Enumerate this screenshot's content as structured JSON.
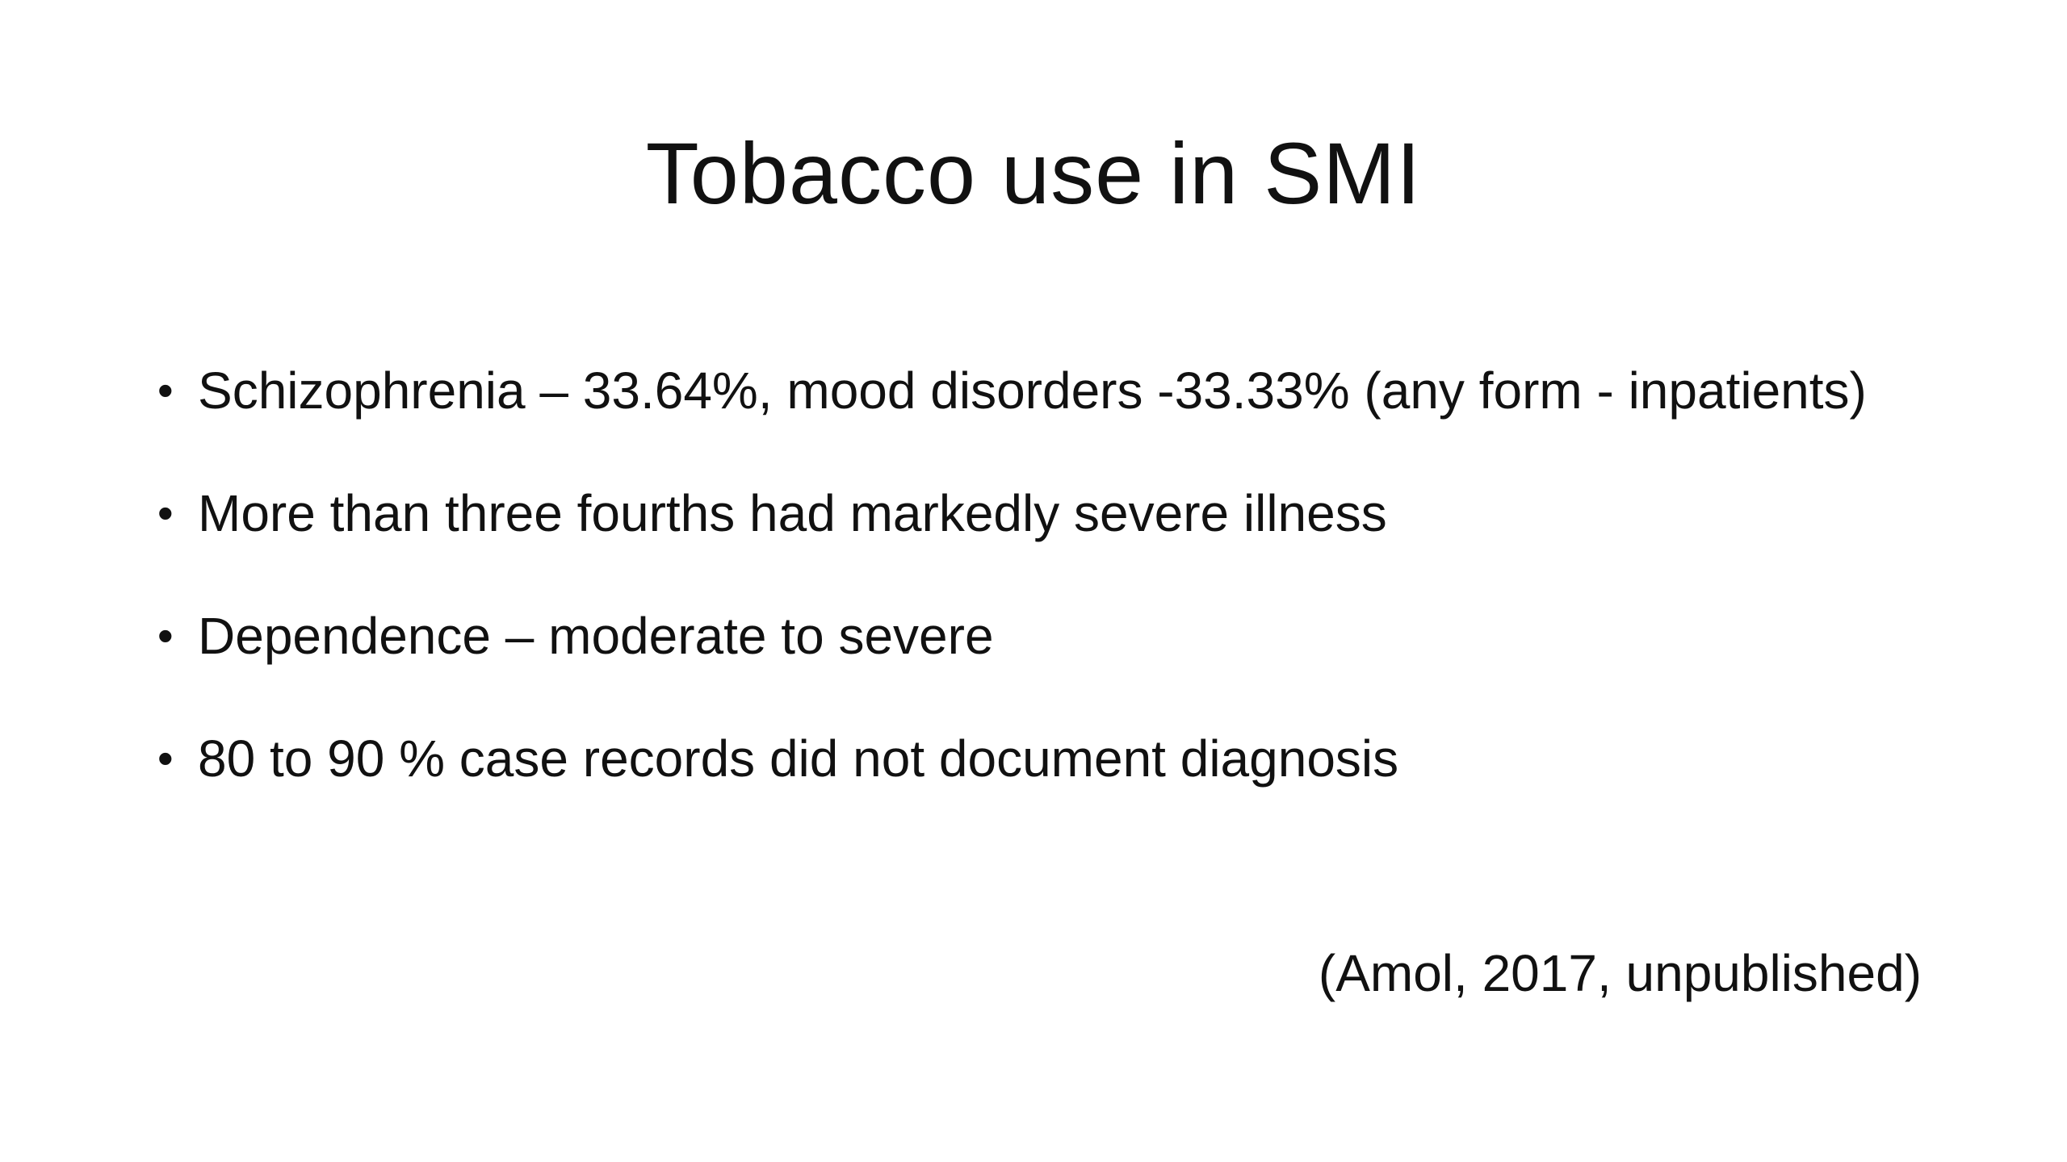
{
  "slide": {
    "title": "Tobacco use in SMI",
    "bullets": [
      {
        "marker": "•",
        "text": "Schizophrenia – 33.64%, mood disorders -33.33% (any form - inpatients)"
      },
      {
        "marker": "•",
        "text": "More than three fourths had markedly severe illness"
      },
      {
        "marker": "•",
        "text": "Dependence – moderate to severe"
      },
      {
        "marker": "•",
        "text": "80 to 90 % case records did not document diagnosis"
      }
    ],
    "citation": "(Amol, 2017, unpublished)"
  }
}
